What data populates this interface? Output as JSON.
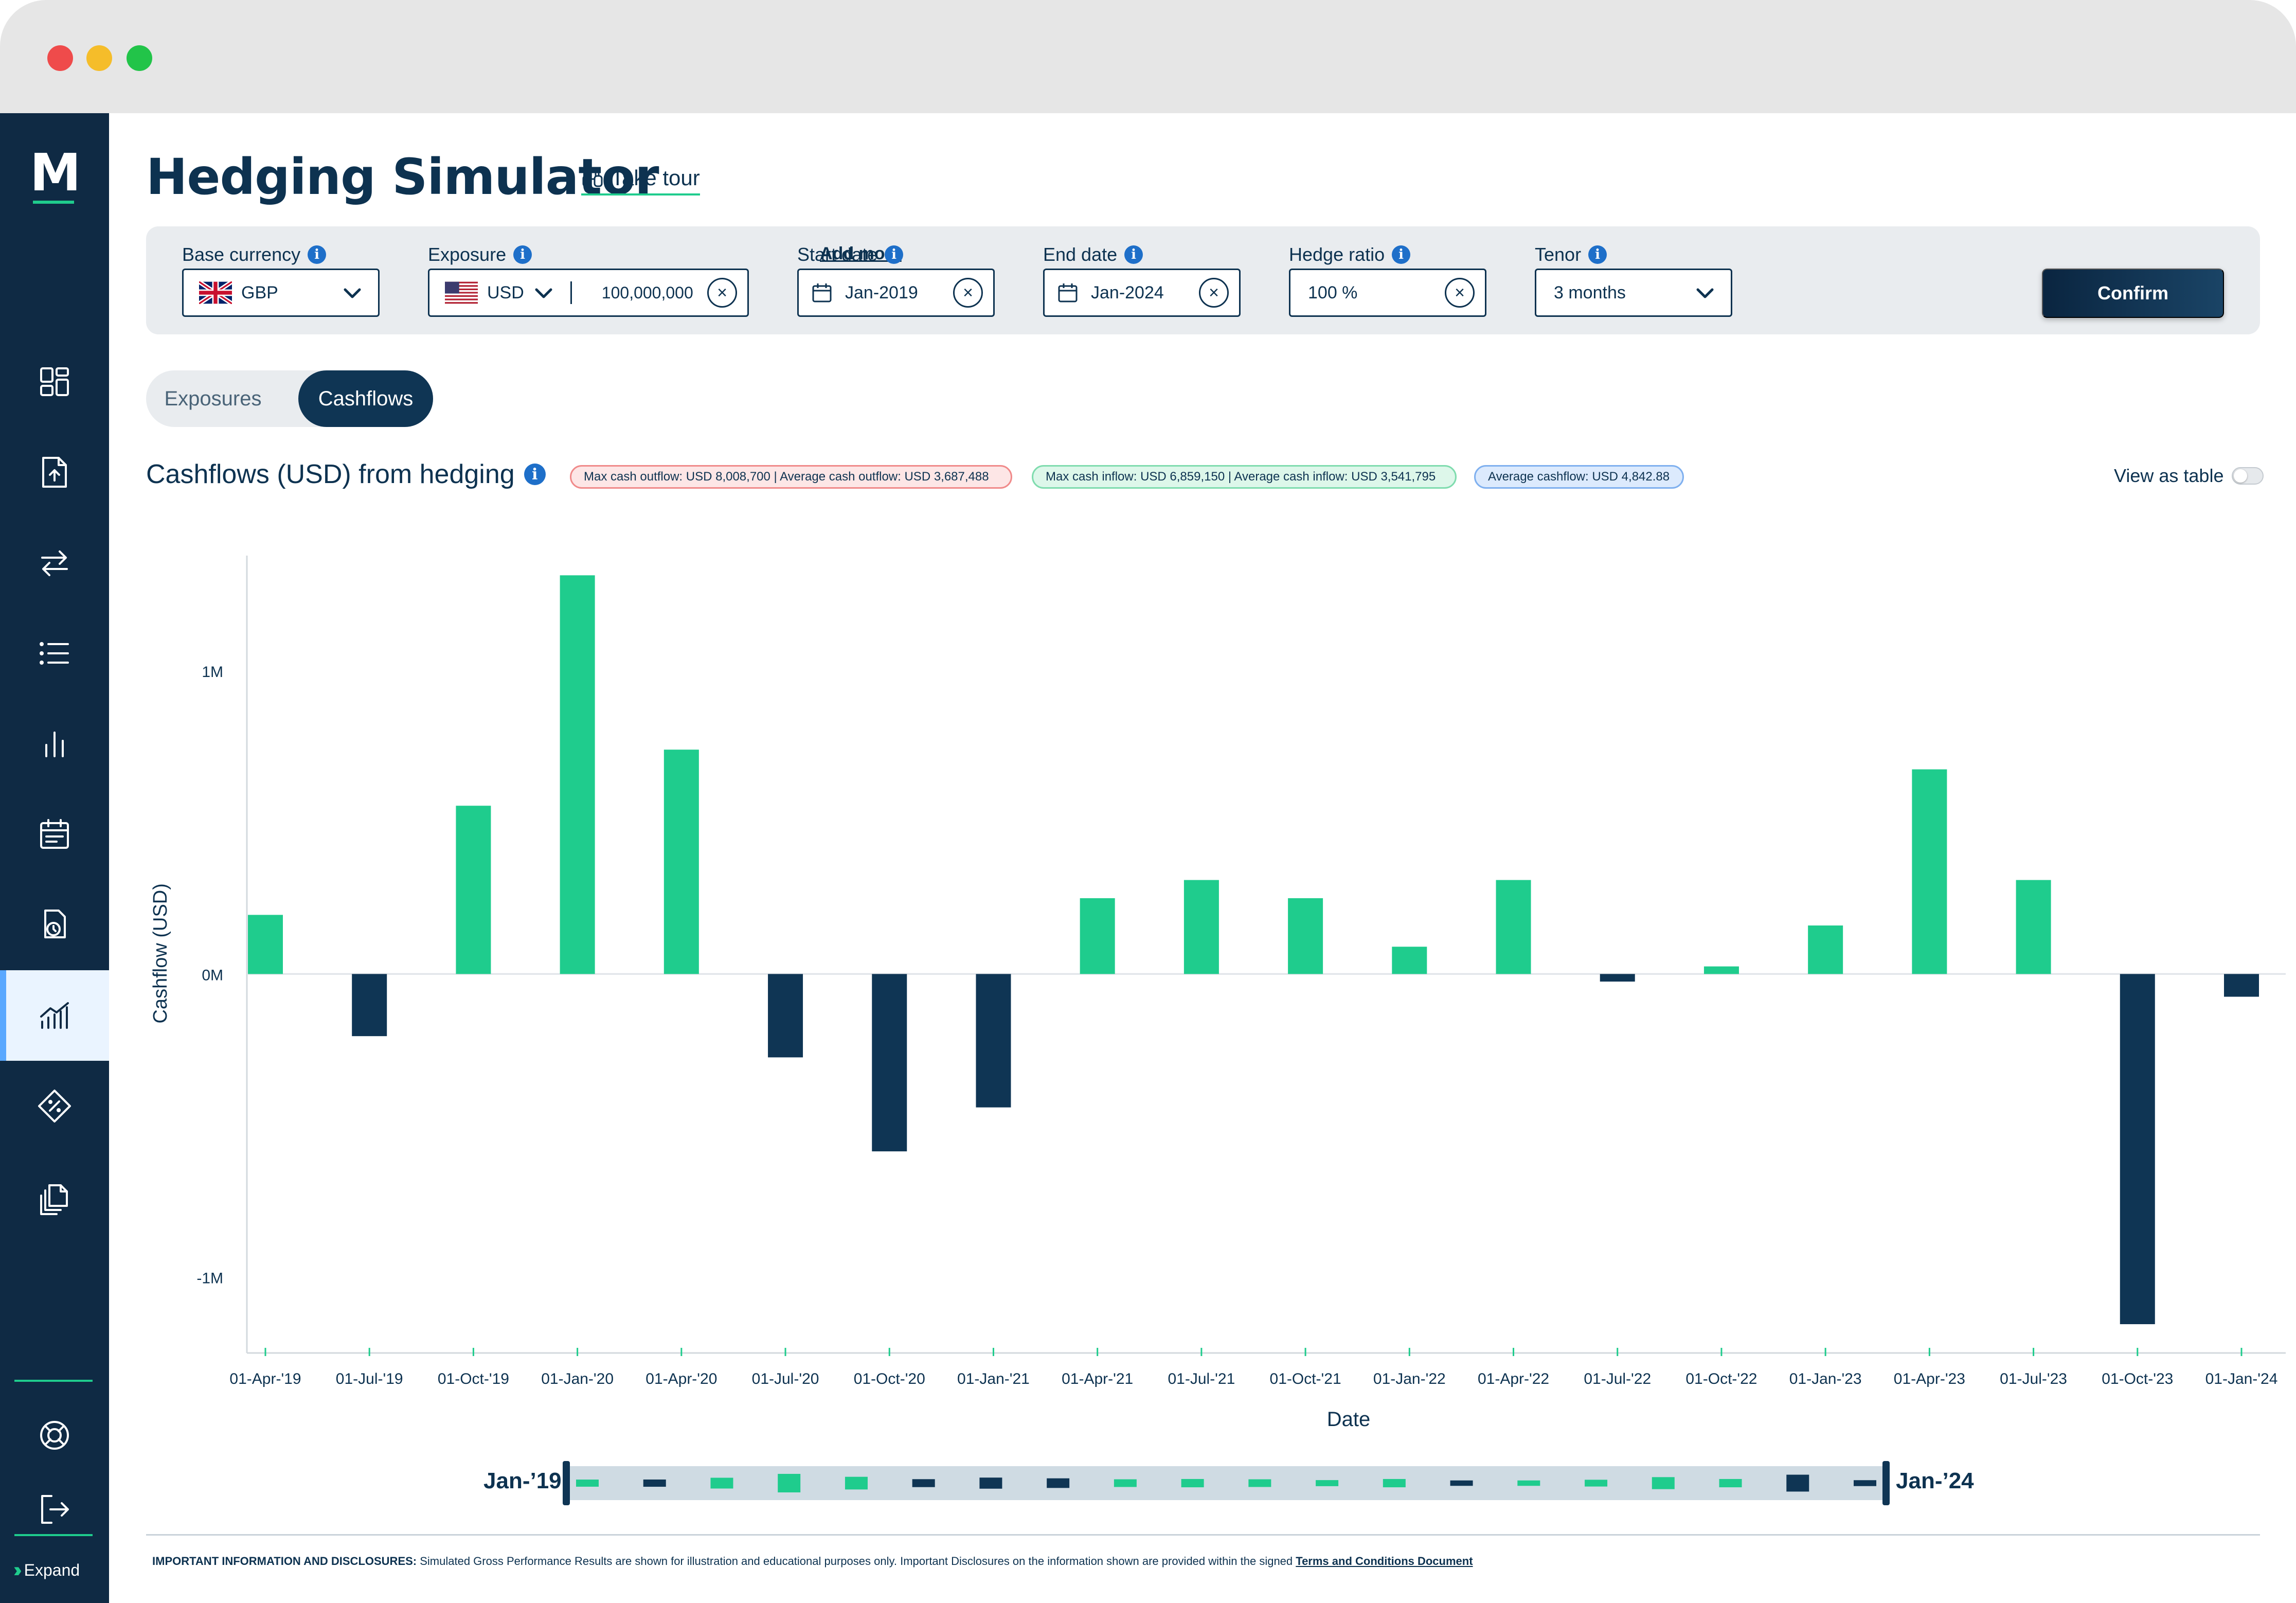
{
  "app": {
    "logo_letter": "M",
    "page_title": "Hedging Simulator",
    "take_tour": "Take tour",
    "expand_label": "Expand"
  },
  "sidebar": {
    "items": [
      {
        "name": "dashboard-icon"
      },
      {
        "name": "upload-file-icon"
      },
      {
        "name": "transfer-arrows-icon"
      },
      {
        "name": "list-icon"
      },
      {
        "name": "bar-chart-icon"
      },
      {
        "name": "calendar-icon"
      },
      {
        "name": "clock-document-icon"
      },
      {
        "name": "trend-chart-icon",
        "active": true
      },
      {
        "name": "percent-tag-icon"
      },
      {
        "name": "copy-documents-icon"
      }
    ],
    "bottom": [
      {
        "name": "help-lifebuoy-icon"
      },
      {
        "name": "logout-icon"
      }
    ]
  },
  "filters": {
    "base_currency": {
      "label": "Base currency",
      "value": "GBP"
    },
    "exposure": {
      "label": "Exposure",
      "currency": "USD",
      "amount": "100,000,000",
      "add_more": "Add more"
    },
    "start_date": {
      "label": "Start date",
      "value": "Jan-2019"
    },
    "end_date": {
      "label": "End date",
      "value": "Jan-2024"
    },
    "hedge_ratio": {
      "label": "Hedge ratio",
      "value": "100 %"
    },
    "tenor": {
      "label": "Tenor",
      "value": "3 months"
    },
    "confirm": "Confirm"
  },
  "tabs": {
    "exposures": "Exposures",
    "cashflows": "Cashflows",
    "active": "cashflows"
  },
  "chart_header": {
    "title": "Cashflows (USD) from hedging",
    "pill_outflow": "Max cash outflow: USD 8,008,700 | Average cash outflow: USD 3,687,488",
    "pill_inflow": "Max cash inflow: USD 6,859,150 | Average cash inflow: USD 3,541,795",
    "pill_average": "Average cashflow: USD 4,842.88",
    "view_as_table": "View as table"
  },
  "chart_data": {
    "type": "bar",
    "xlabel": "Date",
    "ylabel": "Cashflow (USD)",
    "ytick_labels": [
      "1M",
      "0M",
      "-1M"
    ],
    "ytick_values": [
      1000000,
      0,
      -1000000
    ],
    "ylim": [
      -1250000,
      1380000
    ],
    "grid": false,
    "colors": {
      "positive": "#1fcc8d",
      "negative": "#0f3554"
    },
    "categories": [
      "01-Apr-'19",
      "01-Jul-'19",
      "01-Oct-'19",
      "01-Jan-'20",
      "01-Apr-'20",
      "01-Jul-'20",
      "01-Oct-'20",
      "01-Jan-'21",
      "01-Apr-'21",
      "01-Jul-'21",
      "01-Oct-'21",
      "01-Jan-'22",
      "01-Apr-'22",
      "01-Jul-'22",
      "01-Oct-'22",
      "01-Jan-'23",
      "01-Apr-'23",
      "01-Jul-'23",
      "01-Oct-'23",
      "01-Jan-'24"
    ],
    "values": [
      195000,
      -205000,
      555000,
      1315000,
      740000,
      -275000,
      -585000,
      -440000,
      250000,
      310000,
      250000,
      90000,
      310000,
      -25000,
      25000,
      160000,
      675000,
      310000,
      -1155000,
      -75000
    ]
  },
  "range_slider": {
    "start_label": "Jan-’19",
    "end_label": "Jan-’24"
  },
  "disclosure": {
    "heading": "IMPORTANT INFORMATION AND DISCLOSURES:",
    "text": " Simulated Gross Performance Results are shown for illustration and educational purposes only. Important Disclosures on the information shown are provided within the signed ",
    "link": "Terms and Conditions Document"
  }
}
